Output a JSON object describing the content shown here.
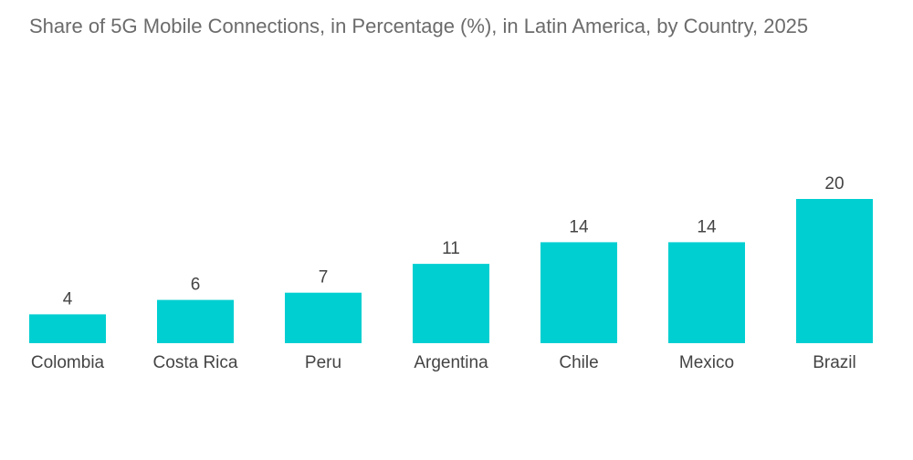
{
  "chart_data": {
    "type": "bar",
    "title": "Share of 5G Mobile Connections, in Percentage (%), in Latin America, by Country, 2025",
    "categories": [
      "Colombia",
      "Costa Rica",
      "Peru",
      "Argentina",
      "Chile",
      "Mexico",
      "Brazil"
    ],
    "values": [
      4,
      6,
      7,
      11,
      14,
      14,
      20
    ],
    "xlabel": "",
    "ylabel": "",
    "ylim": [
      0,
      20
    ],
    "grid": false,
    "legend": "none",
    "colors": {
      "bar": "#00cfd1"
    }
  }
}
